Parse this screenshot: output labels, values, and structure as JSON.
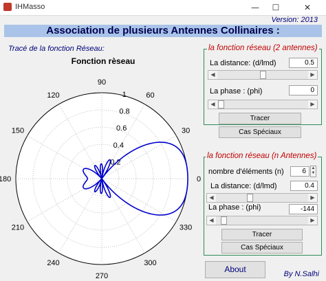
{
  "window": {
    "title": "IHMasso",
    "minimize": "—",
    "maximize": "☐",
    "close": "✕"
  },
  "version": "Version: 2013",
  "header": "Association de plusieurs Antennes Collinaires :",
  "plot": {
    "label": "Tracé de la fonction Réseau:",
    "title": "Fonction rèseau",
    "radial_ticks": [
      "0.2",
      "0.4",
      "0.6",
      "0.8",
      "1"
    ],
    "angle_labels": [
      "0",
      "30",
      "60",
      "90",
      "120",
      "150",
      "180",
      "210",
      "240",
      "270",
      "300",
      "330"
    ],
    "curve_color": "#0000cc"
  },
  "panel1": {
    "title": "la fonction réseau (2 antennes)",
    "distance_label": "La distance: (d/lmd)",
    "distance_value": "0.5",
    "phase_label": "La phase :    (phi)",
    "phase_value": "0",
    "trace_button": "Tracer",
    "special_button": "Cas Spéciaux"
  },
  "panel2": {
    "title": "la fonction réseau (n Antennes)",
    "n_label": "nombre d'éléments  (n)",
    "n_value": "6",
    "distance_label": "La distance:  (d/lmd)",
    "distance_value": "0.4",
    "phase_label": "La phase :    (phi)",
    "phase_value": "-144",
    "trace_button": "Tracer",
    "special_button": "Cas Spéciaux"
  },
  "about_button": "About",
  "author": "By N.Salhi",
  "slider_arrows": {
    "left": "◀",
    "right": "▶"
  },
  "spin_arrows": {
    "up": "▲",
    "down": "▼"
  }
}
